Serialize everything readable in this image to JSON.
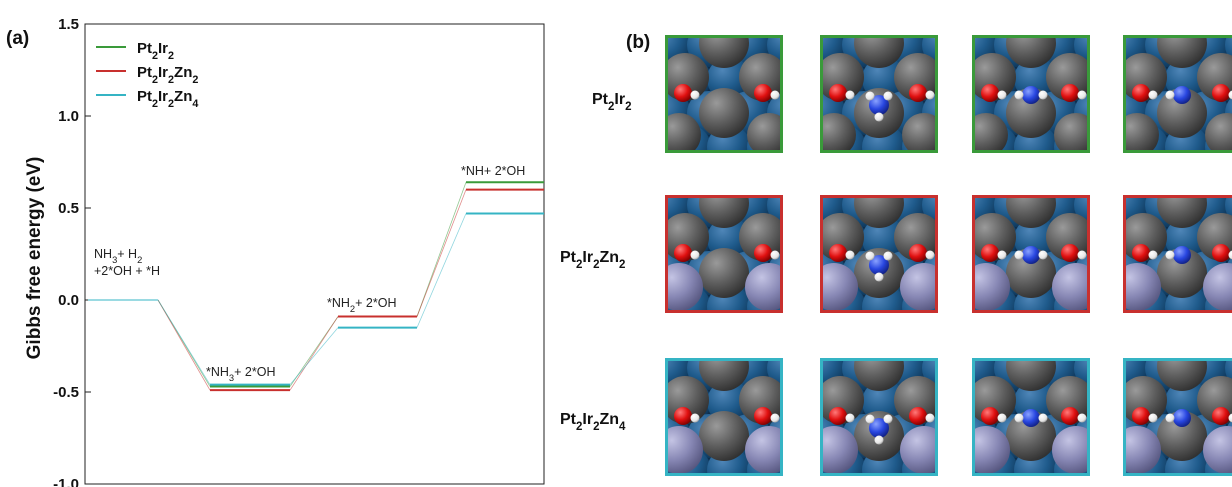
{
  "panel_a": {
    "label": "(a)"
  },
  "panel_b": {
    "label": "(b)",
    "rows": [
      {
        "label_base": "Pt",
        "label_sub1": "2",
        "label_mid": "Ir",
        "label_sub2": "2",
        "label_zn": "",
        "label_sub3": "",
        "color": "#3a9a3a",
        "frames": 4
      },
      {
        "label_base": "Pt",
        "label_sub1": "2",
        "label_mid": "Ir",
        "label_sub2": "2",
        "label_zn": "Zn",
        "label_sub3": "2",
        "color": "#c8302e",
        "frames": 4
      },
      {
        "label_base": "Pt",
        "label_sub1": "2",
        "label_mid": "Ir",
        "label_sub2": "2",
        "label_zn": "Zn",
        "label_sub3": "4",
        "color": "#35b4c4",
        "frames": 4
      }
    ]
  },
  "chart_data": {
    "type": "line",
    "ylabel": "Gibbs free energy (eV)",
    "ylim": [
      -1.0,
      1.5
    ],
    "yticks": [
      "1.5",
      "1.0",
      "0.5",
      "0.0",
      "-0.5",
      "-1.0"
    ],
    "ytick_values": [
      1.5,
      1.0,
      0.5,
      0.0,
      -0.5,
      -1.0
    ],
    "legend_position": "top-left",
    "steps": [
      {
        "label_lines": [
          "NH3+ H2",
          "+2*OH + *H"
        ]
      },
      {
        "label_lines": [
          "*NH3+ 2*OH"
        ]
      },
      {
        "label_lines": [
          "*NH2+ 2*OH"
        ]
      },
      {
        "label_lines": [
          "*NH+ 2*OH"
        ]
      }
    ],
    "series": [
      {
        "name": "Pt2Ir2",
        "name_parts": [
          "Pt",
          "2",
          "Ir",
          "2",
          "",
          ""
        ],
        "color": "#3a9a3a",
        "values": [
          0.0,
          -0.47,
          -0.09,
          0.64
        ]
      },
      {
        "name": "Pt2Ir2Zn2",
        "name_parts": [
          "Pt",
          "2",
          "Ir",
          "2",
          "Zn",
          "2"
        ],
        "color": "#c8302e",
        "values": [
          0.0,
          -0.49,
          -0.09,
          0.6
        ]
      },
      {
        "name": "Pt2Ir2Zn4",
        "name_parts": [
          "Pt",
          "2",
          "Ir",
          "2",
          "Zn",
          "4"
        ],
        "color": "#35b4c4",
        "values": [
          0.0,
          -0.46,
          -0.15,
          0.47
        ]
      }
    ]
  }
}
